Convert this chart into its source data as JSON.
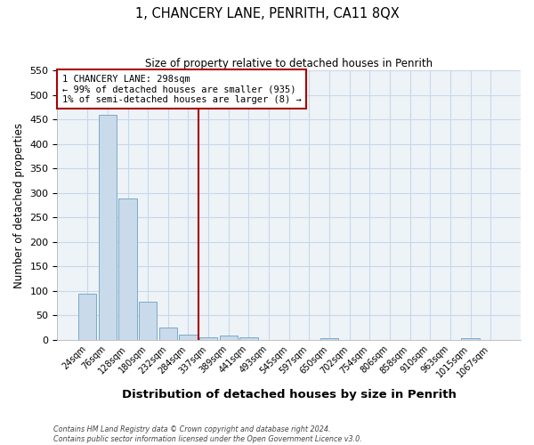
{
  "title": "1, CHANCERY LANE, PENRITH, CA11 8QX",
  "subtitle": "Size of property relative to detached houses in Penrith",
  "xlabel": "Distribution of detached houses by size in Penrith",
  "ylabel": "Number of detached properties",
  "bar_labels": [
    "24sqm",
    "76sqm",
    "128sqm",
    "180sqm",
    "232sqm",
    "284sqm",
    "337sqm",
    "389sqm",
    "441sqm",
    "493sqm",
    "545sqm",
    "597sqm",
    "650sqm",
    "702sqm",
    "754sqm",
    "806sqm",
    "858sqm",
    "910sqm",
    "963sqm",
    "1015sqm",
    "1067sqm"
  ],
  "bar_values": [
    95,
    460,
    288,
    78,
    25,
    10,
    5,
    8,
    5,
    0,
    0,
    0,
    3,
    0,
    0,
    0,
    0,
    0,
    0,
    3,
    0
  ],
  "bar_color": "#c9daea",
  "bar_edge_color": "#7baac8",
  "vline_x": 5.5,
  "vline_color": "#aa0000",
  "ylim": [
    0,
    550
  ],
  "yticks": [
    0,
    50,
    100,
    150,
    200,
    250,
    300,
    350,
    400,
    450,
    500,
    550
  ],
  "annotation_title": "1 CHANCERY LANE: 298sqm",
  "annotation_line1": "← 99% of detached houses are smaller (935)",
  "annotation_line2": "1% of semi-detached houses are larger (8) →",
  "annotation_box_color": "#aa0000",
  "grid_color": "#c8d8e8",
  "footer_line1": "Contains HM Land Registry data © Crown copyright and database right 2024.",
  "footer_line2": "Contains public sector information licensed under the Open Government Licence v3.0.",
  "bg_color": "#eef3f8"
}
